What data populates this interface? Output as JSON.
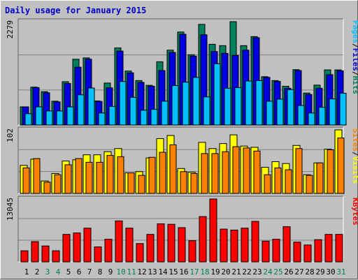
{
  "chart_title": "Daily usage for January 2015",
  "colors": {
    "hits": "#00805c",
    "files": "#0000e0",
    "pages": "#00c0ff",
    "visits": "#ffff00",
    "sites": "#ff8000",
    "kbytes": "#ff0000",
    "weekend_label": "#00805c",
    "weekday_label": "#000000"
  },
  "chart_data": [
    {
      "type": "bar",
      "panel": "top",
      "max_label": "2279",
      "ylim": [
        0,
        2279
      ],
      "grid": true,
      "categories": [
        "1",
        "2",
        "3",
        "4",
        "5",
        "6",
        "7",
        "8",
        "9",
        "10",
        "11",
        "12",
        "13",
        "14",
        "15",
        "16",
        "17",
        "18",
        "19",
        "20",
        "21",
        "22",
        "23",
        "24",
        "25",
        "26",
        "27",
        "28",
        "29",
        "30",
        "31"
      ],
      "weekend_days": [
        "3",
        "4",
        "10",
        "11",
        "17",
        "18",
        "24",
        "25",
        "31"
      ],
      "legend": [
        "Hits",
        "Files",
        "Pages"
      ],
      "series": [
        {
          "name": "Hits",
          "values": [
            400,
            835,
            735,
            525,
            955,
            1450,
            1480,
            530,
            925,
            1700,
            1190,
            980,
            875,
            1395,
            1650,
            2050,
            1550,
            2219,
            1780,
            1750,
            2279,
            1750,
            1950,
            1065,
            980,
            855,
            1220,
            705,
            880,
            1215,
            1215
          ]
        },
        {
          "name": "Files",
          "values": [
            400,
            825,
            710,
            510,
            915,
            1275,
            1450,
            520,
            820,
            1630,
            1150,
            940,
            855,
            1200,
            1600,
            2000,
            1520,
            1990,
            1620,
            1580,
            1535,
            1650,
            1925,
            1050,
            960,
            810,
            1200,
            675,
            810,
            1110,
            1195
          ]
        },
        {
          "name": "Pages",
          "values": [
            250,
            400,
            310,
            310,
            400,
            665,
            815,
            265,
            410,
            960,
            610,
            325,
            345,
            525,
            870,
            945,
            1050,
            620,
            1350,
            810,
            825,
            970,
            980,
            525,
            570,
            780,
            430,
            265,
            390,
            575,
            700
          ]
        }
      ]
    },
    {
      "type": "bar",
      "panel": "middle",
      "max_label": "102",
      "ylim": [
        0,
        102
      ],
      "grid": true,
      "categories": [
        "1",
        "2",
        "3",
        "4",
        "5",
        "6",
        "7",
        "8",
        "9",
        "10",
        "11",
        "12",
        "13",
        "14",
        "15",
        "16",
        "17",
        "18",
        "19",
        "20",
        "21",
        "22",
        "23",
        "24",
        "25",
        "26",
        "27",
        "28",
        "29",
        "30",
        "31"
      ],
      "legend": [
        "Visits",
        "Sites"
      ],
      "series": [
        {
          "name": "Visits",
          "values": [
            45,
            55,
            20,
            32,
            52,
            54,
            62,
            62,
            67,
            72,
            33,
            35,
            57,
            88,
            93,
            40,
            34,
            82,
            72,
            80,
            94,
            76,
            74,
            42,
            51,
            48,
            77,
            30,
            49,
            71,
            102
          ]
        },
        {
          "name": "Sites",
          "values": [
            41,
            56,
            18,
            30,
            46,
            56,
            50,
            50,
            61,
            59,
            33,
            29,
            58,
            66,
            78,
            35,
            32,
            64,
            64,
            67,
            75,
            73,
            68,
            30,
            41,
            38,
            72,
            29,
            49,
            70,
            89
          ]
        }
      ]
    },
    {
      "type": "bar",
      "panel": "bottom",
      "max_label": "13045",
      "ylim": [
        0,
        13045
      ],
      "grid": true,
      "categories": [
        "1",
        "2",
        "3",
        "4",
        "5",
        "6",
        "7",
        "8",
        "9",
        "10",
        "11",
        "12",
        "13",
        "14",
        "15",
        "16",
        "17",
        "18",
        "19",
        "20",
        "21",
        "22",
        "23",
        "24",
        "25",
        "26",
        "27",
        "28",
        "29",
        "30",
        "31"
      ],
      "legend": [
        "KBytes"
      ],
      "series": [
        {
          "name": "KBytes",
          "values": [
            2300,
            4200,
            3300,
            2300,
            5700,
            6000,
            7000,
            3100,
            4700,
            8500,
            7000,
            3800,
            5700,
            7900,
            7800,
            7100,
            4400,
            9400,
            13045,
            6800,
            6600,
            7000,
            8400,
            4300,
            4700,
            7300,
            4100,
            3500,
            4600,
            5700,
            5700
          ]
        }
      ]
    }
  ]
}
